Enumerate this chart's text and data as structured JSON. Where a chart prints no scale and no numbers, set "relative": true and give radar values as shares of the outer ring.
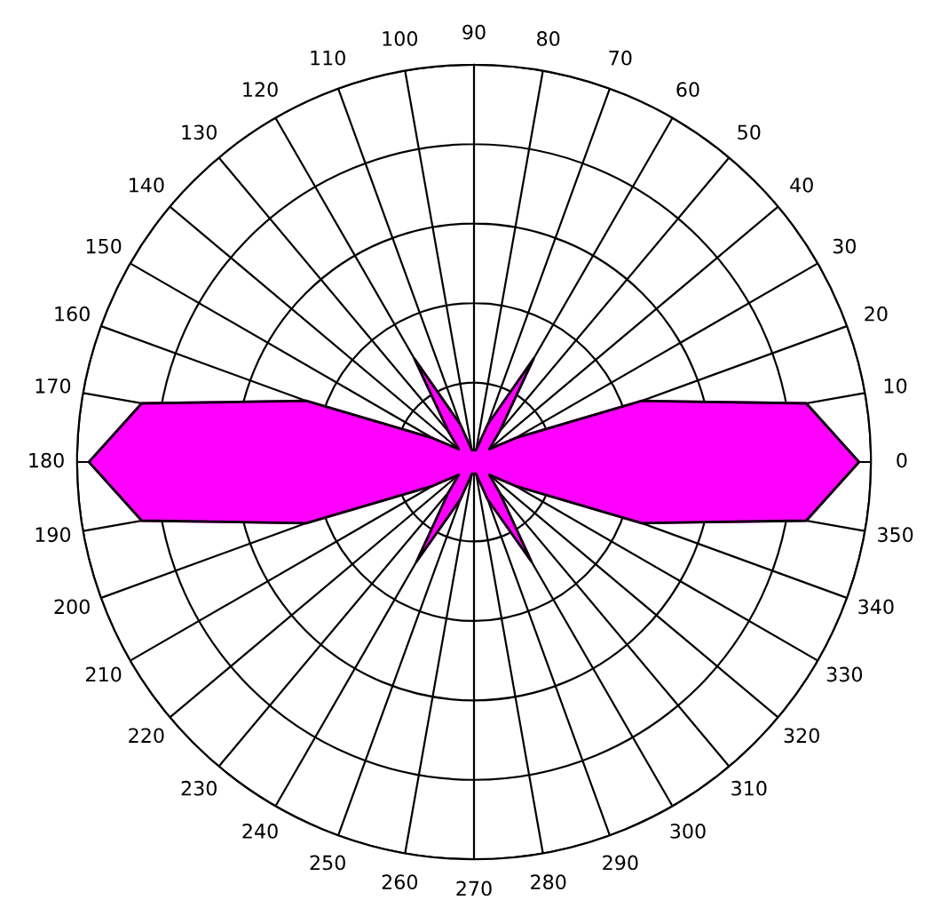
{
  "chart_data": {
    "type": "radar",
    "relative": true,
    "grid": true,
    "legend": false,
    "categories": [
      "90",
      "80",
      "70",
      "60",
      "50",
      "40",
      "30",
      "20",
      "10",
      "0",
      "350",
      "340",
      "330",
      "320",
      "310",
      "300",
      "290",
      "280",
      "270",
      "260",
      "250",
      "240",
      "230",
      "220",
      "210",
      "200",
      "190",
      "180",
      "170",
      "160",
      "150",
      "140",
      "130",
      "120",
      "110",
      "100"
    ],
    "series": [
      {
        "color": "#ff00ff",
        "values": [
          0.03,
          0.03,
          0.1,
          0.3,
          0.1,
          0.05,
          0.12,
          0.45,
          0.85,
          0.97,
          0.85,
          0.45,
          0.12,
          0.05,
          0.1,
          0.29,
          0.1,
          0.03,
          0.03,
          0.03,
          0.1,
          0.29,
          0.1,
          0.05,
          0.12,
          0.45,
          0.85,
          0.97,
          0.85,
          0.45,
          0.12,
          0.05,
          0.1,
          0.3,
          0.1,
          0.03
        ]
      }
    ]
  }
}
